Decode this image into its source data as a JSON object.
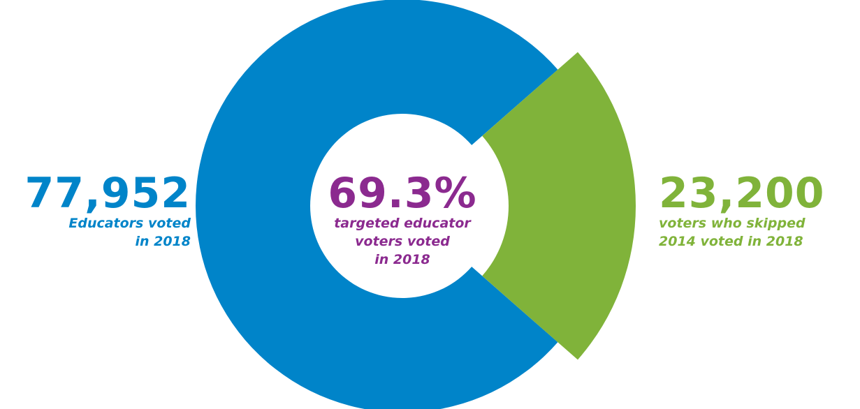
{
  "colors": {
    "blue": "#0084c9",
    "green": "#80b33a",
    "purple": "#8b2a8f",
    "background": "#ffffff"
  },
  "chart_data": {
    "type": "pie",
    "slices": [
      {
        "label": "Educators voted in 2018",
        "value": 77952,
        "color": "#0084c9"
      },
      {
        "label": "voters who skipped 2014 voted in 2018",
        "value": 23200,
        "color": "#80b33a"
      }
    ],
    "center_value": "69.3%",
    "center_caption": "targeted educator voters voted in 2018"
  },
  "stats": {
    "left": {
      "value": "77,952",
      "caption_line1": "Educators voted",
      "caption_line2": "in 2018"
    },
    "center": {
      "value": "69.3%",
      "caption_line1": "targeted educator",
      "caption_line2": "voters voted",
      "caption_line3": "in 2018"
    },
    "right": {
      "value": "23,200",
      "caption_line1": "voters who skipped",
      "caption_line2": "2014 voted in 2018"
    }
  }
}
